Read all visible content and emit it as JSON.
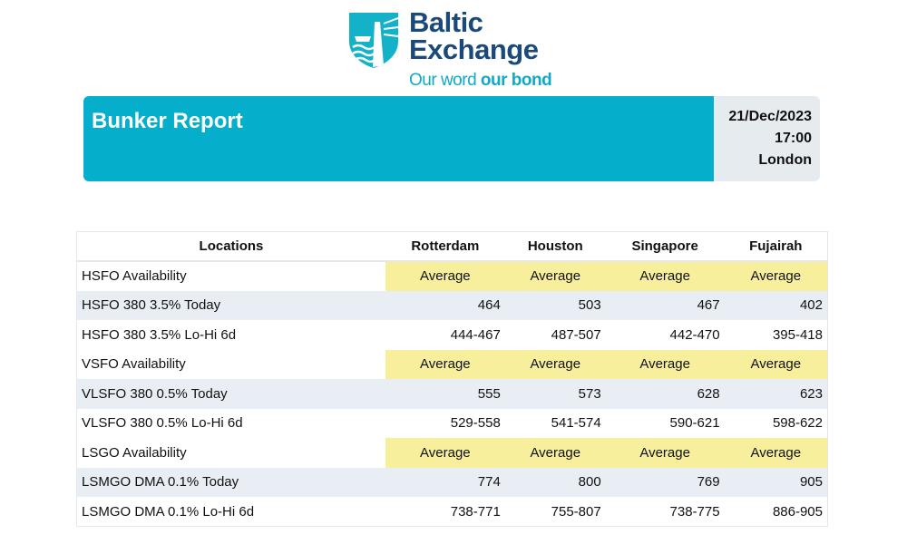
{
  "logo": {
    "line1": "Baltic",
    "line2": "Exchange",
    "tag_a": "Our word",
    "tag_b": "our bond"
  },
  "banner": {
    "title": "Bunker Report",
    "date": "21/Dec/2023",
    "time": "17:00",
    "place": "London"
  },
  "table": {
    "headers": [
      "Locations",
      "Rotterdam",
      "Houston",
      "Singapore",
      "Fujairah"
    ],
    "rows": [
      {
        "label": "HSFO Availability",
        "type": "avail",
        "values": [
          "Average",
          "Average",
          "Average",
          "Average"
        ]
      },
      {
        "label": "HSFO 380 3.5% Today",
        "type": "today",
        "values": [
          "464",
          "503",
          "467",
          "402"
        ]
      },
      {
        "label": "HSFO 380 3.5% Lo-Hi 6d",
        "type": "range",
        "values": [
          "444-467",
          "487-507",
          "442-470",
          "395-418"
        ]
      },
      {
        "label": "VSFO Availability",
        "type": "avail",
        "values": [
          "Average",
          "Average",
          "Average",
          "Average"
        ]
      },
      {
        "label": "VLSFO 380 0.5% Today",
        "type": "today",
        "values": [
          "555",
          "573",
          "628",
          "623"
        ]
      },
      {
        "label": "VLSFO 380 0.5% Lo-Hi 6d",
        "type": "range",
        "values": [
          "529-558",
          "541-574",
          "590-621",
          "598-622"
        ]
      },
      {
        "label": "LSGO Availability",
        "type": "avail",
        "values": [
          "Average",
          "Average",
          "Average",
          "Average"
        ]
      },
      {
        "label": "LSMGO DMA 0.1% Today",
        "type": "today",
        "values": [
          "774",
          "800",
          "769",
          "905"
        ]
      },
      {
        "label": "LSMGO DMA 0.1% Lo-Hi 6d",
        "type": "range",
        "values": [
          "738-771",
          "755-807",
          "738-775",
          "886-905"
        ]
      }
    ]
  }
}
